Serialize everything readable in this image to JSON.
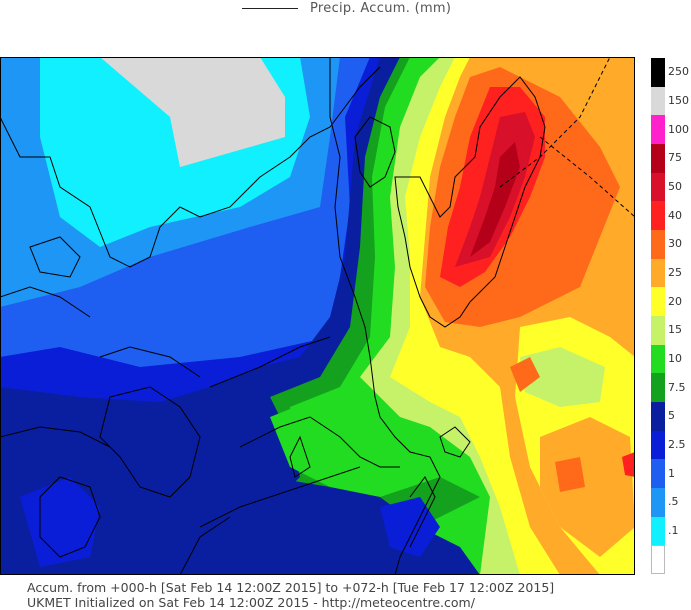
{
  "legend": {
    "series_label": "Precip. Accum. (mm)"
  },
  "colorbar": {
    "levels": [
      {
        "label": "250",
        "color": "#000000"
      },
      {
        "label": "150",
        "color": "#d9d9d9"
      },
      {
        "label": "100",
        "color": "#ff22cc"
      },
      {
        "label": "75",
        "color": "#b5001a"
      },
      {
        "label": "50",
        "color": "#d8102a"
      },
      {
        "label": "40",
        "color": "#ff2020"
      },
      {
        "label": "30",
        "color": "#ff6a1a"
      },
      {
        "label": "25",
        "color": "#ffaa28"
      },
      {
        "label": "20",
        "color": "#ffff2a"
      },
      {
        "label": "15",
        "color": "#c6f26a"
      },
      {
        "label": "10",
        "color": "#22dc22"
      },
      {
        "label": "7.5",
        "color": "#14a11e"
      },
      {
        "label": "5",
        "color": "#0a1ea0"
      },
      {
        "label": "2.5",
        "color": "#0a1ed8"
      },
      {
        "label": "1",
        "color": "#1e5ef0"
      },
      {
        "label": ".5",
        "color": "#1e96f5"
      },
      {
        "label": ".1",
        "color": "#10f0ff"
      },
      {
        "label": "",
        "color": "#ffffff"
      }
    ]
  },
  "footer": {
    "line1": "Accum. from +000-h [Sat Feb 14 12:00Z 2015] to +072-h [Tue Feb 17 12:00Z 2015]",
    "line2": "UKMET Initialized on Sat Feb 14 12:00Z 2015 - http://meteocentre.com/"
  }
}
